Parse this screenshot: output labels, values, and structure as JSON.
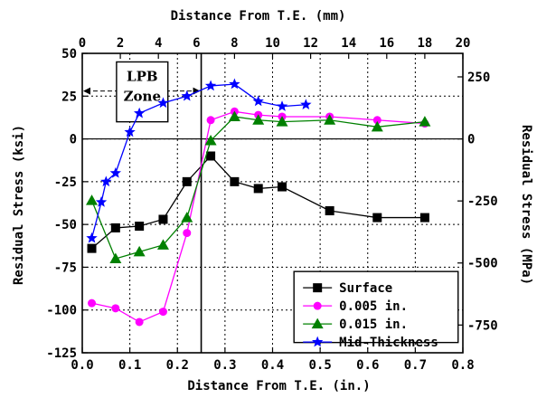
{
  "chart_data": {
    "type": "line",
    "xlabel": "Distance From T.E. (in.)",
    "x2label": "Distance From T.E. (mm)",
    "ylabel": "Residual Stress (ksi)",
    "y2label": "Residual Stress (MPa)",
    "xlim": [
      0,
      0.8
    ],
    "ylim": [
      -125,
      50
    ],
    "x2lim": [
      0,
      20
    ],
    "y2lim": [
      -861.8,
      344.7
    ],
    "xticks": [
      "0.0",
      "0.1",
      "0.2",
      "0.3",
      "0.4",
      "0.5",
      "0.6",
      "0.7",
      "0.8"
    ],
    "yticks": [
      "50",
      "25",
      "0",
      "-25",
      "-50",
      "-75",
      "-100",
      "-125"
    ],
    "x2ticks": [
      "0",
      "2",
      "4",
      "6",
      "8",
      "10",
      "12",
      "14",
      "16",
      "18",
      "20"
    ],
    "y2ticks": [
      "250",
      "0",
      "-250",
      "-500",
      "-750"
    ],
    "grid": true,
    "legend_position": "lower-right",
    "annotations": {
      "zone_label_line1": "LPB",
      "zone_label_line2": "Zone",
      "zone_x_range": [
        0,
        0.25
      ]
    },
    "series": [
      {
        "name": "Surface",
        "color": "#000000",
        "marker": "square",
        "x": [
          0.02,
          0.07,
          0.12,
          0.17,
          0.22,
          0.27,
          0.32,
          0.37,
          0.42,
          0.52,
          0.62,
          0.72
        ],
        "y": [
          -64,
          -52,
          -51,
          -47,
          -25,
          -10,
          -25,
          -29,
          -28,
          -42,
          -46,
          -46
        ]
      },
      {
        "name": "0.005 in.",
        "color": "#ff00ff",
        "marker": "circle",
        "x": [
          0.02,
          0.07,
          0.12,
          0.17,
          0.22,
          0.27,
          0.32,
          0.37,
          0.42,
          0.52,
          0.62,
          0.72
        ],
        "y": [
          -96,
          -99,
          -107,
          -101,
          -55,
          11,
          16,
          14,
          13,
          13,
          11,
          9
        ]
      },
      {
        "name": "0.015 in.",
        "color": "#008000",
        "marker": "triangle",
        "x": [
          0.02,
          0.07,
          0.12,
          0.17,
          0.22,
          0.27,
          0.32,
          0.37,
          0.42,
          0.52,
          0.62,
          0.72
        ],
        "y": [
          -36,
          -70,
          -66,
          -62,
          -46,
          -1,
          13,
          11,
          10,
          11,
          7,
          10
        ]
      },
      {
        "name": "Mid-Thickness",
        "color": "#0000ff",
        "marker": "star",
        "x": [
          0.02,
          0.04,
          0.05,
          0.07,
          0.1,
          0.12,
          0.17,
          0.22,
          0.27,
          0.32,
          0.37,
          0.42,
          0.47
        ],
        "y": [
          -58,
          -37,
          -25,
          -20,
          4,
          15,
          21,
          25,
          31,
          32,
          22,
          19,
          20
        ]
      }
    ]
  }
}
